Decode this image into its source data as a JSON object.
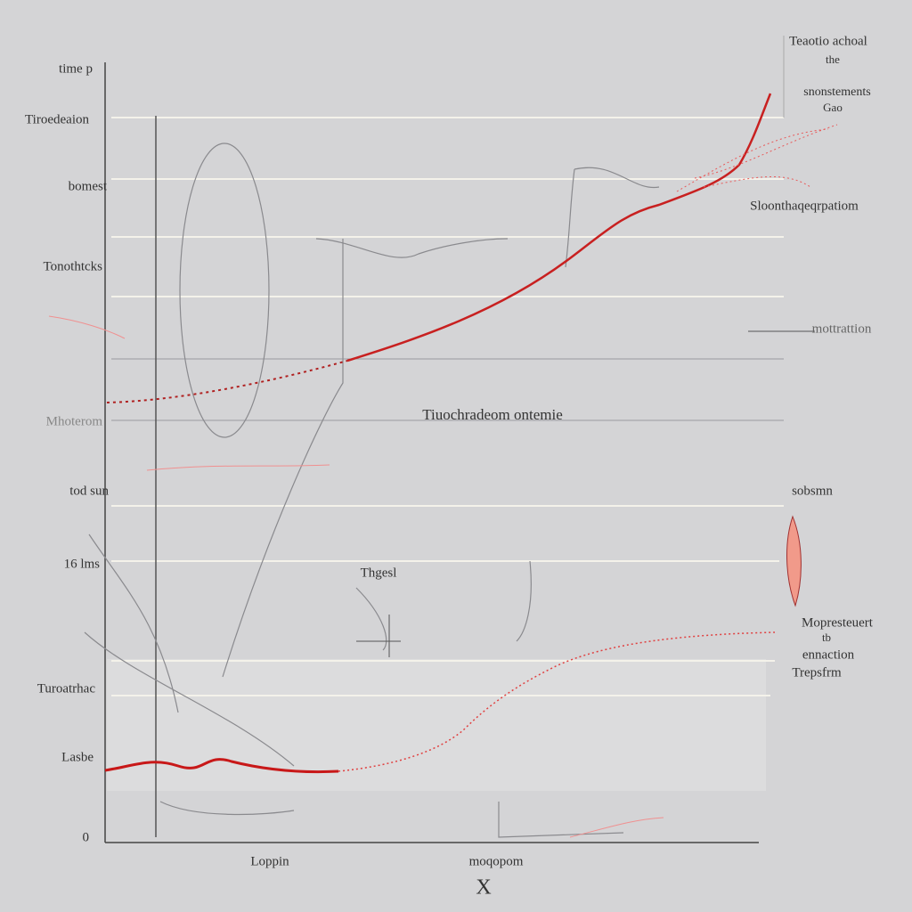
{
  "axis": {
    "y_title": "time p",
    "y_labels": [
      "Tiroedeaion",
      "bomest",
      "Tonothtcks",
      "Mhoterom",
      "tod sun",
      "16 lms",
      "Turoatrhac",
      "Lasbe",
      "0"
    ],
    "x_labels": [
      "Loppin",
      "moqopom"
    ],
    "x_title": "X"
  },
  "annotations": {
    "top_right": [
      "Teaotio achoal",
      "the",
      "snonstements",
      "Gao"
    ],
    "upper_right": "Sloonthaqeqrpatiom",
    "right_mid": "mottrattion",
    "center": "Tiuochradeom ontemie",
    "right_lower": "sobsmn",
    "lower_center": "Thgesl",
    "bottom_right": [
      "Mopresteuert",
      "tb",
      "ennaction",
      "Trepsfrm"
    ]
  }
}
